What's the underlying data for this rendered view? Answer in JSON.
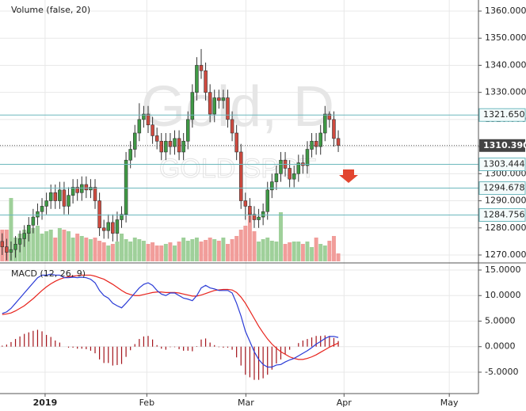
{
  "chart_data": [
    {
      "type": "candlestick",
      "watermark": "Gold, D",
      "watermark_subtitle": "GOLD SPOT",
      "volume_label": "Volume (false, 20)",
      "up_color": "#3f9a45",
      "down_color": "#cf4a3f",
      "volume_up_color": "#9fd09a",
      "volume_down_color": "#f19d9a",
      "grid": true,
      "xlim": [
        -0.5,
        107.7
      ],
      "ylim": [
        1267.66,
        1364.09
      ],
      "yticks": [
        {
          "value": 1270,
          "label": "1270.000"
        },
        {
          "value": 1280,
          "label": "1280.000"
        },
        {
          "value": 1290,
          "label": "1290.000"
        },
        {
          "value": 1300,
          "label": "1300.000"
        },
        {
          "value": 1310,
          "label": "1310.000"
        },
        {
          "value": 1320,
          "label": "1320.000"
        },
        {
          "value": 1330,
          "label": "1330.000"
        },
        {
          "value": 1340,
          "label": "1340.000"
        },
        {
          "value": 1350,
          "label": "1350.000"
        },
        {
          "value": 1360,
          "label": "1360.000"
        }
      ],
      "price_lines": [
        {
          "value": 1321.65,
          "label": "1321.650"
        },
        {
          "value": 1303.444,
          "label": "1303.444"
        },
        {
          "value": 1294.678,
          "label": "1294.678"
        },
        {
          "value": 1284.756,
          "label": "1284.756"
        }
      ],
      "price_line_color": "#6cb8bd",
      "last_price": {
        "value": 1310.39,
        "label": "1310.390"
      },
      "open": [
        1275,
        1273,
        1271,
        1272,
        1274,
        1276,
        1278,
        1281,
        1284,
        1286,
        1288,
        1290,
        1293,
        1290,
        1294,
        1288,
        1292,
        1295,
        1293,
        1296,
        1294,
        1295,
        1290,
        1280,
        1279,
        1282,
        1278,
        1283,
        1285,
        1305,
        1309,
        1315,
        1320,
        1322,
        1318,
        1314,
        1312,
        1308,
        1312,
        1310,
        1313,
        1308,
        1312,
        1320,
        1330,
        1340,
        1338,
        1330,
        1322,
        1328,
        1327,
        1328,
        1320,
        1315,
        1308,
        1290,
        1288,
        1285,
        1283,
        1284,
        1286,
        1294,
        1297,
        1300,
        1305,
        1302,
        1298,
        1300,
        1304,
        1303,
        1309,
        1312,
        1310,
        1315,
        1322,
        1320,
        1313
      ],
      "high": [
        1278,
        1276,
        1275,
        1277,
        1279,
        1281,
        1284,
        1287,
        1289,
        1291,
        1293,
        1296,
        1296,
        1297,
        1297,
        1295,
        1298,
        1298,
        1299,
        1299,
        1298,
        1298,
        1293,
        1283,
        1285,
        1285,
        1286,
        1288,
        1308,
        1312,
        1318,
        1326,
        1325,
        1325,
        1321,
        1317,
        1315,
        1315,
        1315,
        1316,
        1316,
        1315,
        1323,
        1333,
        1343,
        1346,
        1341,
        1333,
        1331,
        1331,
        1331,
        1331,
        1323,
        1318,
        1311,
        1293,
        1291,
        1288,
        1287,
        1289,
        1297,
        1300,
        1303,
        1308,
        1308,
        1305,
        1303,
        1307,
        1307,
        1312,
        1315,
        1315,
        1318,
        1325,
        1323,
        1323,
        1316
      ],
      "low": [
        1270,
        1268,
        1268,
        1269,
        1271,
        1273,
        1275,
        1278,
        1281,
        1283,
        1285,
        1287,
        1287,
        1287,
        1285,
        1285,
        1289,
        1290,
        1290,
        1291,
        1291,
        1287,
        1277,
        1276,
        1276,
        1275,
        1275,
        1280,
        1282,
        1302,
        1306,
        1312,
        1317,
        1315,
        1311,
        1309,
        1305,
        1305,
        1307,
        1307,
        1305,
        1305,
        1309,
        1317,
        1327,
        1335,
        1327,
        1319,
        1319,
        1324,
        1324,
        1317,
        1312,
        1305,
        1287,
        1283,
        1282,
        1280,
        1280,
        1281,
        1283,
        1291,
        1294,
        1297,
        1299,
        1295,
        1295,
        1297,
        1300,
        1300,
        1306,
        1307,
        1307,
        1312,
        1317,
        1310,
        1308
      ],
      "close": [
        1273,
        1271,
        1272,
        1274,
        1276,
        1278,
        1281,
        1284,
        1286,
        1288,
        1290,
        1293,
        1290,
        1294,
        1288,
        1292,
        1295,
        1293,
        1296,
        1294,
        1295,
        1290,
        1280,
        1279,
        1282,
        1278,
        1283,
        1285,
        1305,
        1309,
        1315,
        1320,
        1322,
        1318,
        1314,
        1312,
        1308,
        1312,
        1310,
        1313,
        1308,
        1312,
        1320,
        1330,
        1340,
        1338,
        1330,
        1322,
        1328,
        1327,
        1328,
        1320,
        1315,
        1308,
        1290,
        1288,
        1285,
        1283,
        1284,
        1286,
        1294,
        1297,
        1300,
        1305,
        1302,
        1298,
        1300,
        1304,
        1303,
        1309,
        1312,
        1310,
        1315,
        1322,
        1320,
        1313,
        1310.39
      ],
      "volume": [
        40,
        40,
        80,
        30,
        35,
        40,
        38,
        42,
        45,
        35,
        38,
        40,
        30,
        42,
        40,
        38,
        30,
        35,
        32,
        30,
        28,
        30,
        26,
        24,
        20,
        22,
        25,
        35,
        28,
        25,
        30,
        28,
        26,
        22,
        24,
        20,
        20,
        22,
        24,
        20,
        25,
        30,
        26,
        28,
        30,
        25,
        27,
        30,
        28,
        26,
        30,
        22,
        28,
        32,
        40,
        45,
        62,
        38,
        25,
        28,
        30,
        26,
        25,
        62,
        22,
        24,
        25,
        25,
        22,
        25,
        18,
        30,
        22,
        20,
        26,
        32,
        10
      ]
    },
    {
      "type": "macd",
      "label": "MACD (12, 26, 9)",
      "macd_color": "#2a3bd6",
      "signal_color": "#e8231c",
      "histogram_color": "#a3141b",
      "grid": true,
      "xlim": [
        -0.5,
        107.7
      ],
      "ylim": [
        -9.19,
        15.93
      ],
      "yticks": [
        {
          "value": -5,
          "label": "-5.0000"
        },
        {
          "value": 0,
          "label": "0.0000"
        },
        {
          "value": 5,
          "label": "5.0000"
        },
        {
          "value": 10,
          "label": "10.0000"
        },
        {
          "value": 15,
          "label": "15.0000"
        }
      ],
      "xticks": [
        {
          "value": 9.7,
          "label": "2019"
        },
        {
          "value": 32.7,
          "label": "Feb"
        },
        {
          "value": 55.1,
          "label": "Mar"
        },
        {
          "value": 77.3,
          "label": "Apr"
        },
        {
          "value": 101.1,
          "label": "May"
        }
      ],
      "macd": [
        6.5,
        6.8,
        7.5,
        8.5,
        9.5,
        10.5,
        11.5,
        12.5,
        13.5,
        14,
        14,
        14.2,
        14,
        14,
        13.5,
        13.5,
        13.6,
        13.5,
        13.6,
        13.5,
        13.2,
        12.5,
        11,
        10,
        9.5,
        8.5,
        8,
        7.6,
        8.5,
        9.5,
        10.5,
        11.5,
        12.2,
        12.5,
        12,
        11,
        10.3,
        10,
        10.5,
        10.5,
        10,
        9.5,
        9.3,
        9,
        10,
        11.5,
        12,
        11.5,
        11.3,
        11,
        11,
        11,
        10.5,
        8.5,
        6,
        3,
        1,
        -1,
        -2.5,
        -3.5,
        -4,
        -4,
        -3.6,
        -3.5,
        -3,
        -2.6,
        -2.3,
        -1.8,
        -1.3,
        -0.8,
        -0.2,
        0.5,
        1,
        1.6,
        2,
        2,
        1.8
      ],
      "signal": [
        6.3,
        6.4,
        6.6,
        7,
        7.5,
        8,
        8.7,
        9.4,
        10.2,
        11,
        11.7,
        12.3,
        12.8,
        13.2,
        13.5,
        13.7,
        13.8,
        13.9,
        14,
        14,
        14,
        13.8,
        13.5,
        13.2,
        12.7,
        12.2,
        11.6,
        11,
        10.5,
        10.2,
        10,
        10,
        10.2,
        10.4,
        10.6,
        10.7,
        10.7,
        10.6,
        10.6,
        10.6,
        10.5,
        10.3,
        10.1,
        9.9,
        9.9,
        10.1,
        10.4,
        10.7,
        11,
        11.1,
        11.2,
        11.2,
        11.1,
        10.6,
        9.7,
        8.5,
        7,
        5.5,
        4,
        2.7,
        1.5,
        0.5,
        -0.3,
        -1,
        -1.5,
        -2,
        -2.3,
        -2.5,
        -2.5,
        -2.3,
        -2,
        -1.6,
        -1.1,
        -0.6,
        -0.1,
        0.3,
        0.7
      ],
      "histogram": [
        0.2,
        0.4,
        0.9,
        1.5,
        2,
        2.5,
        2.8,
        3.1,
        3.3,
        3,
        2.3,
        1.9,
        1.2,
        0.8,
        0,
        -0.2,
        -0.2,
        -0.4,
        -0.4,
        -0.5,
        -0.8,
        -1.3,
        -2.5,
        -3.2,
        -3.2,
        -3.7,
        -3.6,
        -3.4,
        -2,
        -0.7,
        0.5,
        1.5,
        2,
        2.1,
        1.4,
        0.3,
        -0.4,
        -0.6,
        -0.1,
        -0.1,
        -0.5,
        -0.8,
        -0.8,
        -0.9,
        0.1,
        1.4,
        1.6,
        0.8,
        0.3,
        -0.1,
        -0.2,
        -0.2,
        -0.6,
        -2.1,
        -3.7,
        -5.5,
        -6,
        -6.5,
        -6.5,
        -6.2,
        -5.5,
        -4.5,
        -3.3,
        -2.5,
        -1.5,
        -0.6,
        0,
        0.7,
        1.2,
        1.5,
        1.8,
        2.1,
        2.1,
        2.2,
        2.1,
        1.7,
        1.1
      ]
    }
  ]
}
